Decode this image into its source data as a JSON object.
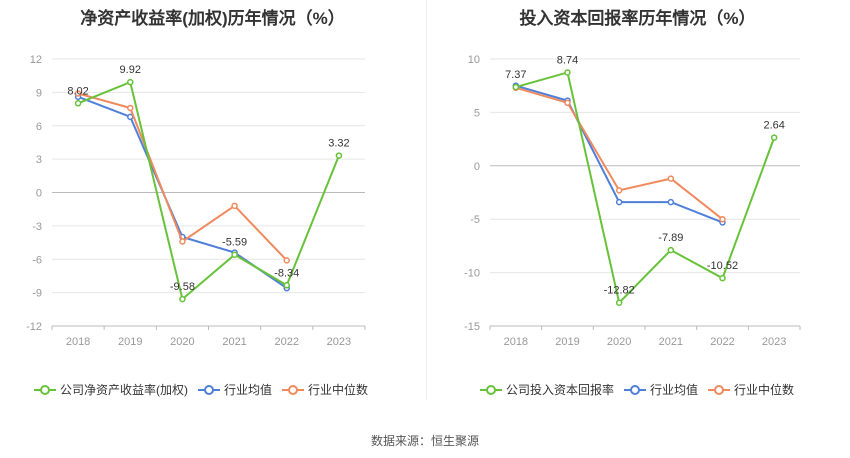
{
  "chart_data": [
    {
      "type": "line",
      "title": "净资产收益率(加权)历年情况（%）",
      "categories": [
        "2018",
        "2019",
        "2020",
        "2021",
        "2022",
        "2023"
      ],
      "ylim": [
        -12,
        12
      ],
      "yticks": [
        12,
        9,
        6,
        3,
        0,
        -3,
        -6,
        -9,
        -12
      ],
      "grid": true,
      "legend_position": "bottom",
      "series": [
        {
          "name": "公司净资产收益率(加权)",
          "color": "#67c23a",
          "values": [
            8.02,
            9.92,
            -9.58,
            -5.59,
            -8.34,
            3.32
          ],
          "labels": [
            "8.02",
            "9.92",
            "-9.58",
            "-5.59",
            "-8.34",
            "3.32"
          ]
        },
        {
          "name": "行业均值",
          "color": "#4f7fd9",
          "values": [
            8.6,
            6.8,
            -4.0,
            -5.4,
            -8.6,
            null
          ]
        },
        {
          "name": "行业中位数",
          "color": "#f08a5d",
          "values": [
            8.9,
            7.6,
            -4.4,
            -1.2,
            -6.1,
            null
          ]
        }
      ]
    },
    {
      "type": "line",
      "title": "投入资本回报率历年情况（%）",
      "categories": [
        "2018",
        "2019",
        "2020",
        "2021",
        "2022",
        "2023"
      ],
      "ylim": [
        -15,
        10
      ],
      "yticks": [
        10,
        5,
        0,
        -5,
        -10,
        -15
      ],
      "grid": true,
      "legend_position": "bottom",
      "series": [
        {
          "name": "公司投入资本回报率",
          "color": "#67c23a",
          "values": [
            7.37,
            8.74,
            -12.82,
            -7.89,
            -10.52,
            2.64
          ],
          "labels": [
            "7.37",
            "8.74",
            "-12.82",
            "-7.89",
            "-10.52",
            "2.64"
          ]
        },
        {
          "name": "行业均值",
          "color": "#4f7fd9",
          "values": [
            7.5,
            6.1,
            -3.4,
            -3.4,
            -5.3,
            null
          ]
        },
        {
          "name": "行业中位数",
          "color": "#f08a5d",
          "values": [
            7.3,
            5.9,
            -2.3,
            -1.2,
            -5.0,
            null
          ]
        }
      ]
    }
  ],
  "source": "数据来源：恒生聚源"
}
